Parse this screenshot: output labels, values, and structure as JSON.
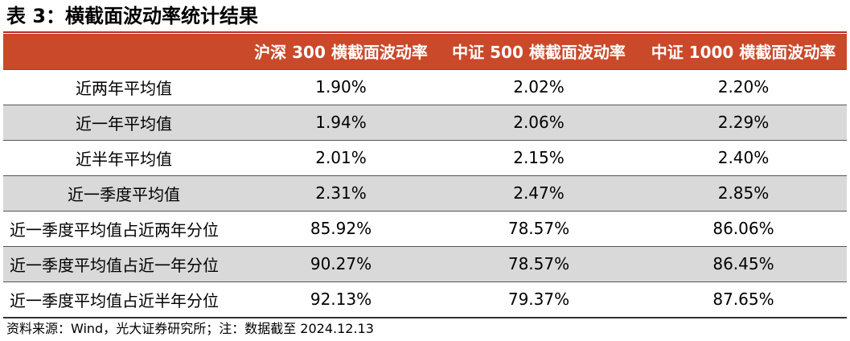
{
  "title": "表 3：横截面波动率统计结果",
  "table": {
    "headers": [
      "",
      "沪深 300 横截面波动率",
      "中证 500 横截面波动率",
      "中证 1000 横截面波动率"
    ],
    "rows": [
      {
        "label": "近两年平均值",
        "values": [
          "1.90%",
          "2.02%",
          "2.20%"
        ]
      },
      {
        "label": "近一年平均值",
        "values": [
          "1.94%",
          "2.06%",
          "2.29%"
        ]
      },
      {
        "label": "近半年平均值",
        "values": [
          "2.01%",
          "2.15%",
          "2.40%"
        ]
      },
      {
        "label": "近一季度平均值",
        "values": [
          "2.31%",
          "2.47%",
          "2.85%"
        ]
      },
      {
        "label": "近一季度平均值占近两年分位",
        "values": [
          "85.92%",
          "78.57%",
          "86.06%"
        ]
      },
      {
        "label": "近一季度平均值占近一年分位",
        "values": [
          "90.27%",
          "78.57%",
          "86.45%"
        ]
      },
      {
        "label": "近一季度平均值占近半年分位",
        "values": [
          "92.13%",
          "79.37%",
          "87.65%"
        ]
      }
    ]
  },
  "source": "资料来源：Wind，光大证券研究所；注：数据截至 2024.12.13",
  "colors": {
    "header_bg": "#c9492a",
    "shade_bg": "#d9d9d9",
    "header_text": "#ffffff"
  }
}
